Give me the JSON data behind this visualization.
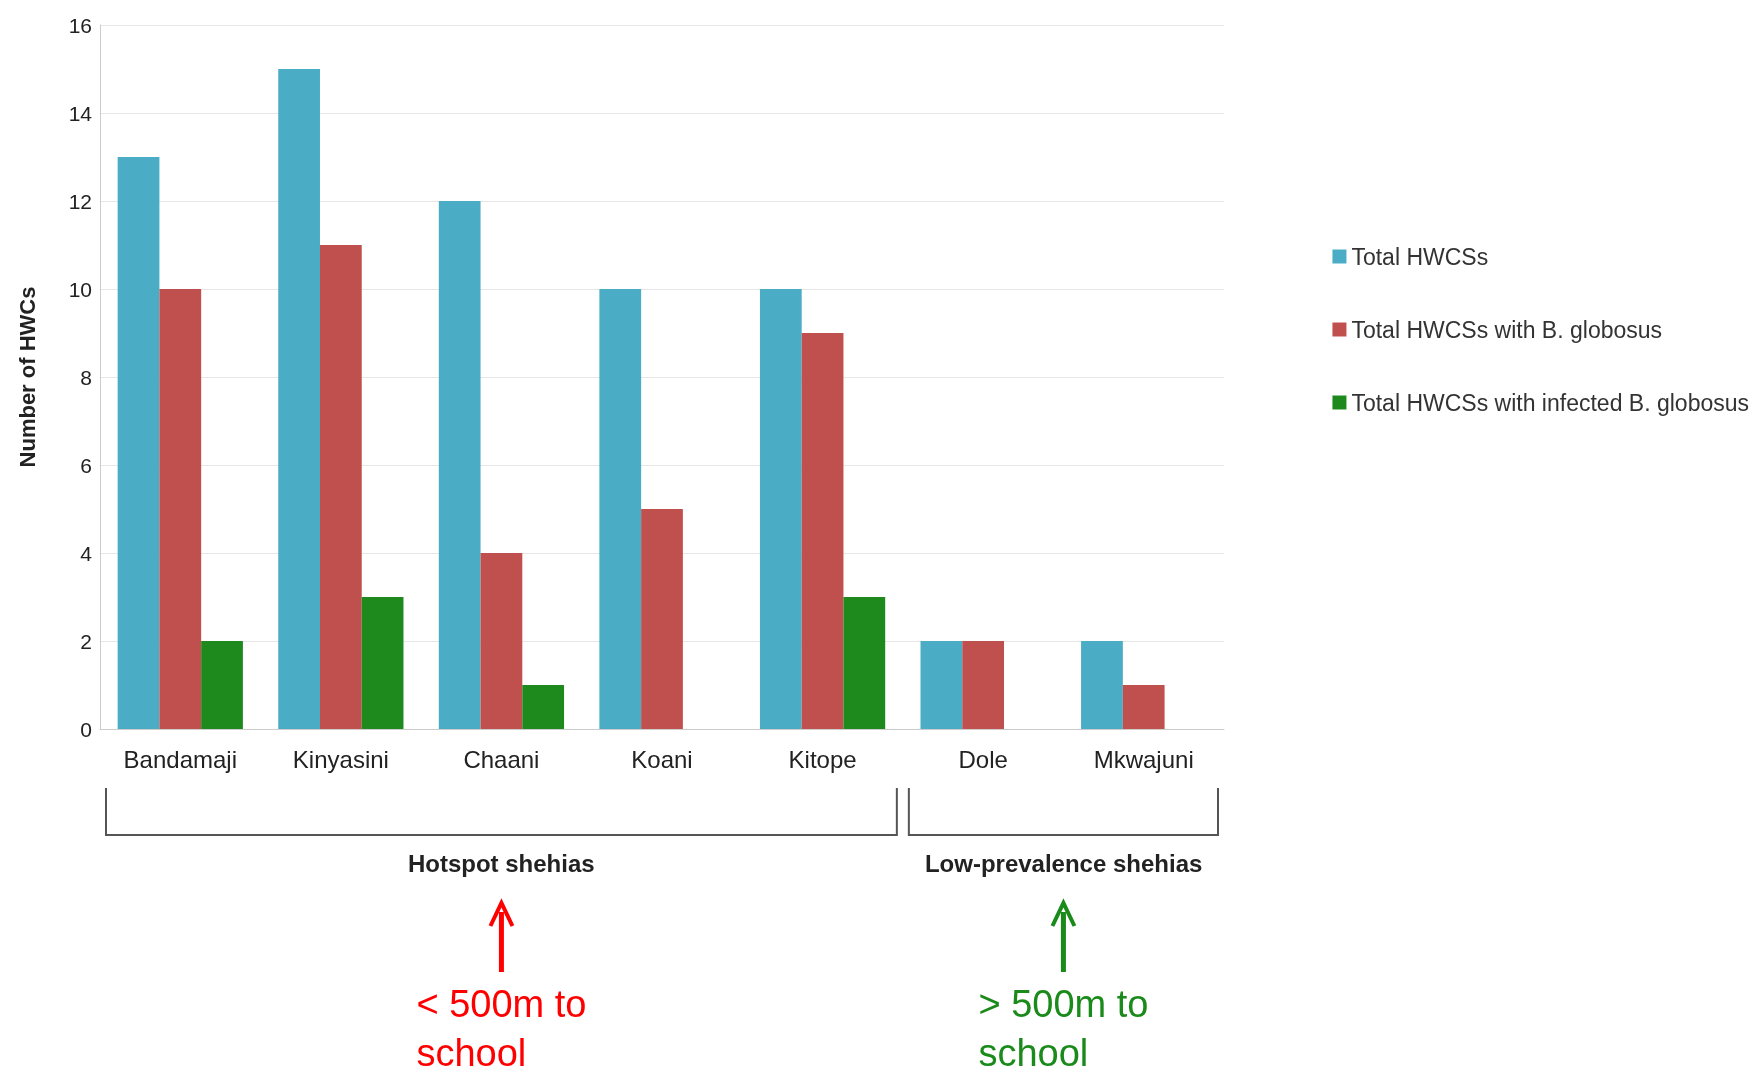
{
  "chart_data": {
    "type": "bar",
    "ylabel": "Number of HWCs",
    "categories": [
      "Bandamaji",
      "Kinyasini",
      "Chaani",
      "Koani",
      "Kitope",
      "Dole",
      "Mkwajuni"
    ],
    "series": [
      {
        "name": "Total HWCSs",
        "color": "#4bacc6",
        "values": [
          13,
          15,
          12,
          10,
          10,
          2,
          2
        ]
      },
      {
        "name": "Total HWCSs with B. globosus",
        "color": "#c0504d",
        "values": [
          10,
          11,
          4,
          5,
          9,
          2,
          1
        ]
      },
      {
        "name": "Total HWCSs with infected B. globosus",
        "color": "#1e8a1e",
        "values": [
          2,
          3,
          1,
          0,
          3,
          0,
          0
        ]
      }
    ],
    "ylim": [
      0,
      16
    ],
    "yticks": [
      0,
      2,
      4,
      6,
      8,
      10,
      12,
      14,
      16
    ],
    "grid": "y",
    "legend": "right",
    "annotations": [
      "Hotspot shehias",
      "Low-prevalence shehias",
      "< 500m to school",
      "> 500m to school"
    ]
  }
}
